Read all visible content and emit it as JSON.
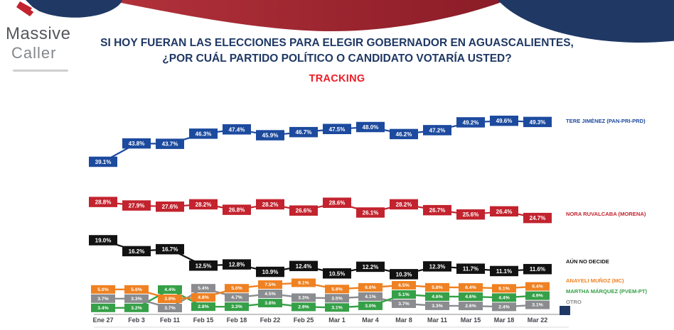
{
  "brand": {
    "name_line1": "Massive",
    "name_line2": "Caller"
  },
  "header": {
    "title_line1": "SI HOY FUERAN LAS ELECCIONES PARA ELEGIR GOBERNADOR EN AGUASCALIENTES,",
    "title_line2": "¿POR CUÁL PARTIDO POLÍTICO O CANDIDATO VOTARÍA USTED?",
    "tracking_label": "TRACKING"
  },
  "colors": {
    "title_navy": "#1f3864",
    "tracking_red": "#ee1c25",
    "header_ellipse_navy": "#203864",
    "header_swoosh_red_left": "#b3323b",
    "header_swoosh_red_right": "#8a1c27",
    "axis_label": "#43464b",
    "axis_line": "#b3b3b3"
  },
  "chart_data": {
    "type": "line",
    "title": "TRACKING",
    "xlabel": "",
    "ylabel": "",
    "ylim": [
      0,
      55
    ],
    "grid": false,
    "legend_position": "right",
    "data_labels": "every point, one decimal, percent, white text on series-color box",
    "x": [
      "Ene 27",
      "Feb 3",
      "Feb 11",
      "Feb 15",
      "Feb 18",
      "Feb 22",
      "Feb 25",
      "Mar 1",
      "Mar 4",
      "Mar 8",
      "Mar 11",
      "Mar 15",
      "Mar 18",
      "Mar 22"
    ],
    "series": [
      {
        "name": "TERE JIMÉNEZ (PAN-PRI-PRD)",
        "color": "#1c4a9e",
        "size": "large",
        "values": [
          39.1,
          43.8,
          43.7,
          46.3,
          47.4,
          45.9,
          46.7,
          47.5,
          48.0,
          46.2,
          47.2,
          49.2,
          49.6,
          49.3
        ]
      },
      {
        "name": "NORA RUVALCABA (MORENA)",
        "color": "#c2232e",
        "size": "large",
        "values": [
          28.8,
          27.9,
          27.6,
          28.2,
          26.8,
          28.2,
          26.6,
          28.6,
          26.1,
          28.2,
          26.7,
          25.6,
          26.4,
          24.7
        ]
      },
      {
        "name": "AÚN NO DECIDE",
        "color": "#121212",
        "size": "large",
        "values": [
          19.0,
          16.2,
          16.7,
          12.5,
          12.8,
          10.9,
          12.4,
          10.5,
          12.2,
          10.3,
          12.3,
          11.7,
          11.1,
          11.6
        ]
      },
      {
        "name": "ANAYELI MUÑOZ (MC)",
        "color": "#ef8122",
        "size": "small",
        "values": [
          5.0,
          5.6,
          3.9,
          4.8,
          5.0,
          7.5,
          8.1,
          5.8,
          6.6,
          6.5,
          5.8,
          6.4,
          6.1,
          6.4
        ]
      },
      {
        "name": "MARTHA MÁRQUEZ (PVEM-PT)",
        "color": "#35a047",
        "size": "small",
        "values": [
          3.4,
          3.2,
          4.4,
          2.8,
          3.3,
          3.8,
          2.9,
          3.1,
          3.0,
          5.1,
          4.6,
          4.6,
          4.4,
          4.9
        ]
      },
      {
        "name": "OTRO",
        "color": "#8a8c8f",
        "size": "small",
        "values": [
          3.7,
          3.3,
          3.7,
          5.4,
          4.7,
          4.5,
          3.3,
          3.5,
          4.1,
          3.7,
          3.3,
          2.6,
          2.4,
          3.1
        ]
      }
    ]
  }
}
